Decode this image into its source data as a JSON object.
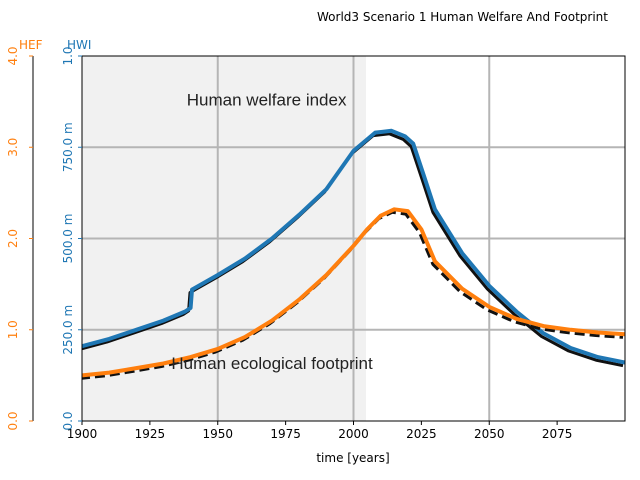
{
  "chart_data": {
    "type": "line",
    "title": "World3 Scenario 1 Human Welfare And Footprint",
    "xlabel": "time [years]",
    "xlim": [
      1900,
      2100
    ],
    "x_ticks": [
      "1900",
      "1925",
      "1950",
      "1975",
      "2000",
      "2025",
      "2050",
      "2075"
    ],
    "hef_axis": {
      "label": "HEF",
      "color": "#ff7f0e",
      "ylim": [
        0,
        4
      ],
      "ticks": [
        "0.0",
        "1.0",
        "2.0",
        "3.0",
        "4.0"
      ]
    },
    "hwi_axis": {
      "label": "HWI",
      "color": "#1f77b4",
      "ylim": [
        0,
        1
      ],
      "ticks": [
        "0.0",
        "250.0 m",
        "500.0 m",
        "750.0 m",
        "1.0"
      ]
    },
    "annotations": [
      "Human welfare index",
      "Human ecological footprint"
    ],
    "series": [
      {
        "axis": "hwi",
        "color": "#1f77b4",
        "x": [
          1900,
          1910,
          1920,
          1930,
          1938,
          1940,
          1940.5,
          1950,
          1960,
          1970,
          1980,
          1990,
          2000,
          2008,
          2014,
          2019,
          2022,
          2026,
          2030,
          2040,
          2050,
          2060,
          2070,
          2080,
          2090,
          2100
        ],
        "y": [
          0.205,
          0.225,
          0.25,
          0.275,
          0.3,
          0.31,
          0.36,
          0.4,
          0.445,
          0.5,
          0.565,
          0.635,
          0.74,
          0.79,
          0.795,
          0.78,
          0.76,
          0.67,
          0.58,
          0.46,
          0.37,
          0.3,
          0.24,
          0.2,
          0.175,
          0.16
        ]
      },
      {
        "axis": "hef",
        "color": "#ff7f0e",
        "x": [
          1900,
          1910,
          1920,
          1930,
          1940,
          1950,
          1960,
          1970,
          1980,
          1990,
          2000,
          2005,
          2010,
          2015,
          2020,
          2025,
          2030,
          2040,
          2050,
          2060,
          2070,
          2080,
          2090,
          2100
        ],
        "y": [
          0.5,
          0.53,
          0.58,
          0.63,
          0.7,
          0.79,
          0.92,
          1.1,
          1.33,
          1.6,
          1.92,
          2.1,
          2.25,
          2.32,
          2.3,
          2.1,
          1.75,
          1.45,
          1.25,
          1.12,
          1.04,
          1.0,
          0.97,
          0.95
        ]
      }
    ]
  }
}
